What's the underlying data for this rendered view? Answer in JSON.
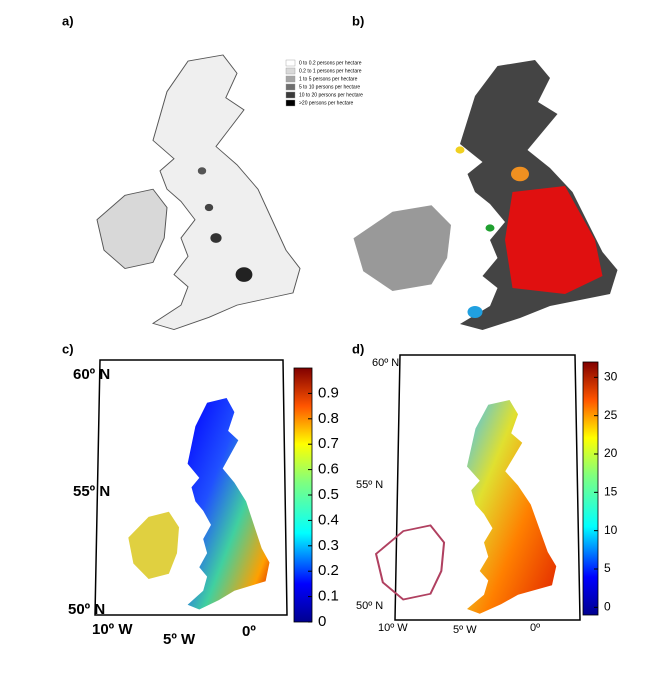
{
  "panels": [
    {
      "label": "a)",
      "legend": {
        "items": [
          {
            "text": "0 to 0.2 persons per hectare",
            "color": "#ffffff"
          },
          {
            "text": "0.2 to 1 persons per hectare",
            "color": "#d9d9d9"
          },
          {
            "text": "1 to 5 persons per hectare",
            "color": "#a6a6a6"
          },
          {
            "text": "5 to 10 persons per hectare",
            "color": "#6e6e6e"
          },
          {
            "text": "10 to 20 persons per hectare",
            "color": "#3a3a3a"
          },
          {
            "text": ">20 persons per hectare",
            "color": "#000000"
          }
        ]
      }
    },
    {
      "label": "b)"
    },
    {
      "label": "c)",
      "lat_labels": [
        "60º N",
        "55º N",
        "50º N"
      ],
      "lon_labels": [
        "10º W",
        "5º W",
        "0º"
      ],
      "colorbar": {
        "lim": [
          0,
          1
        ],
        "ticks": [
          0,
          0.1,
          0.2,
          0.3,
          0.4,
          0.5,
          0.6,
          0.7,
          0.8,
          0.9
        ]
      }
    },
    {
      "label": "d)",
      "lat_labels": [
        "60º N",
        "55º N",
        "50º N"
      ],
      "lon_labels": [
        "10º W",
        "5º W",
        "0º"
      ],
      "colorbar": {
        "lim": [
          -1,
          32
        ],
        "ticks": [
          0,
          5,
          10,
          15,
          20,
          25,
          30
        ]
      }
    }
  ]
}
